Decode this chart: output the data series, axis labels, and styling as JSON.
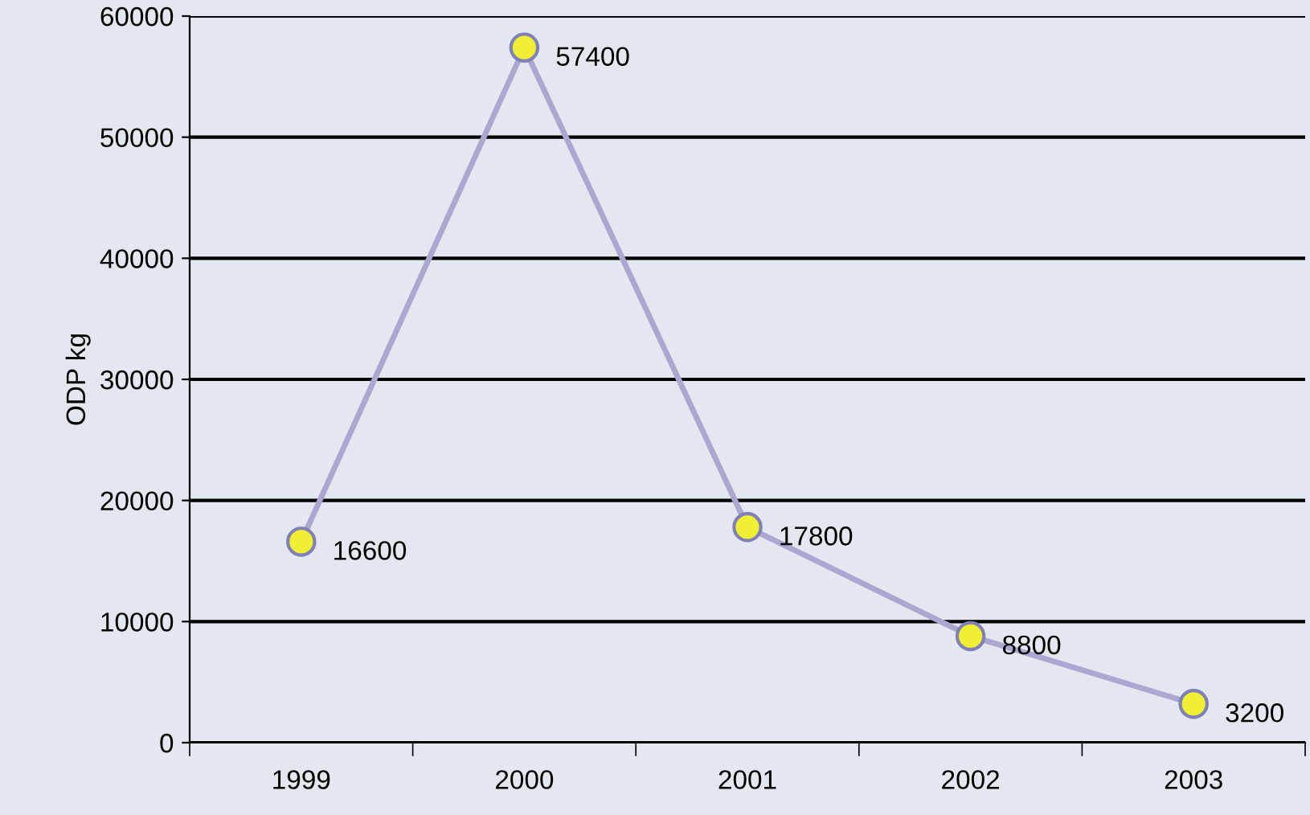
{
  "chart_data": {
    "type": "line",
    "ylabel": "ODP kg",
    "categories": [
      "1999",
      "2000",
      "2001",
      "2002",
      "2003"
    ],
    "series": [
      {
        "color": "#a8a8d0",
        "values": [
          16600,
          57400,
          17800,
          8800,
          3200
        ]
      }
    ],
    "ylim": [
      0,
      60000
    ],
    "yticks": [
      0,
      10000,
      20000,
      30000,
      40000,
      50000,
      60000
    ],
    "grid": "y",
    "marker": "circle",
    "line_style": "solid",
    "data_labels": true
  }
}
